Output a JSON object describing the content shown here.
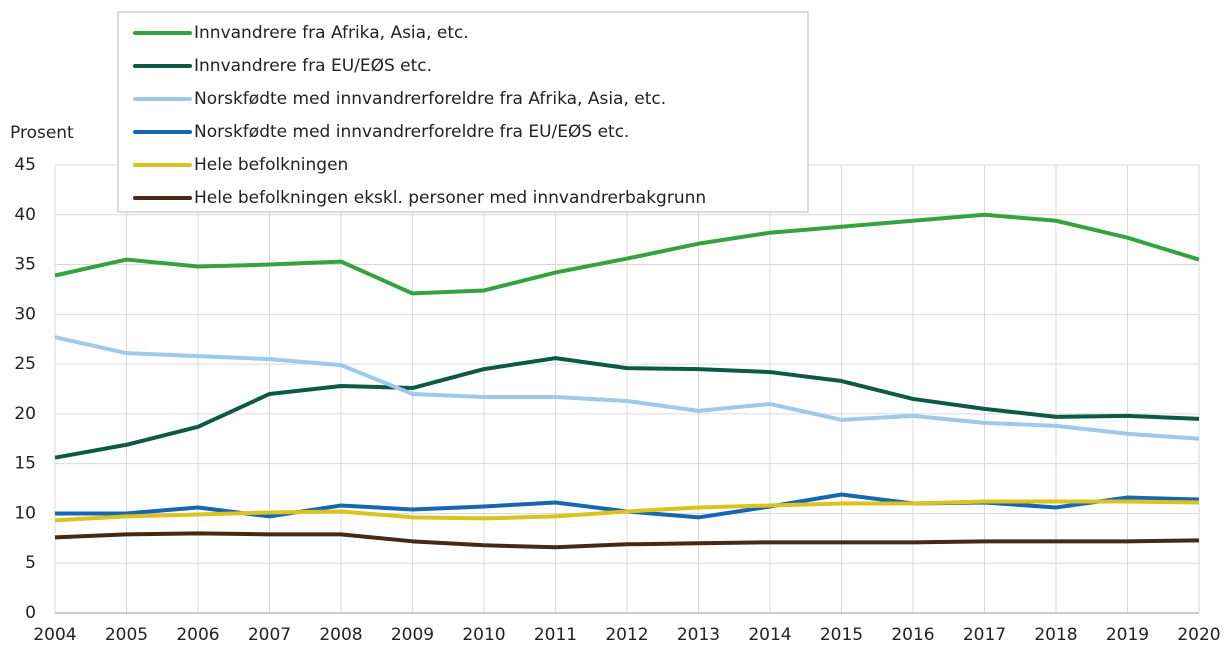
{
  "chart_data": {
    "type": "line",
    "y_label": "Prosent",
    "categories": [
      "2004",
      "2005",
      "2006",
      "2007",
      "2008",
      "2009",
      "2010",
      "2011",
      "2012",
      "2013",
      "2014",
      "2015",
      "2016",
      "2017",
      "2018",
      "2019",
      "2020"
    ],
    "ylim": [
      0,
      45
    ],
    "yticks": [
      0,
      5,
      10,
      15,
      20,
      25,
      30,
      35,
      40,
      45
    ],
    "grid": true,
    "legend": "top-left",
    "series": [
      {
        "name": "Innvandrere fra Afrika, Asia, etc.",
        "color": "#35a33d",
        "values": [
          33.9,
          35.5,
          34.8,
          35.0,
          35.3,
          32.1,
          32.4,
          34.2,
          35.6,
          37.1,
          38.2,
          38.8,
          39.4,
          40.0,
          39.4,
          37.7,
          35.5
        ]
      },
      {
        "name": "Innvandrere fra EU/EØS etc.",
        "color": "#0b5a45",
        "values": [
          15.6,
          16.9,
          18.7,
          22.0,
          22.8,
          22.6,
          24.5,
          25.6,
          24.6,
          24.5,
          24.2,
          23.3,
          21.5,
          20.5,
          19.7,
          19.8,
          19.5
        ]
      },
      {
        "name": "Norskfødte med innvandrerforeldre fra Afrika, Asia, etc.",
        "color": "#9dcaea",
        "values": [
          27.7,
          26.1,
          25.8,
          25.5,
          24.9,
          22.0,
          21.7,
          21.7,
          21.3,
          20.3,
          21.0,
          19.4,
          19.8,
          19.1,
          18.8,
          18.0,
          17.5
        ]
      },
      {
        "name": "Norskfødte med innvandrerforeldre fra EU/EØS etc.",
        "color": "#1467b0",
        "values": [
          10.0,
          10.0,
          10.6,
          9.7,
          10.8,
          10.4,
          10.7,
          11.1,
          10.2,
          9.6,
          10.7,
          11.9,
          11.0,
          11.1,
          10.6,
          11.6,
          11.4
        ]
      },
      {
        "name": "Hele befolkningen",
        "color": "#dcc21c",
        "values": [
          9.3,
          9.7,
          9.9,
          10.1,
          10.2,
          9.6,
          9.5,
          9.7,
          10.2,
          10.6,
          10.8,
          11.0,
          11.0,
          11.2,
          11.2,
          11.2,
          11.1
        ]
      },
      {
        "name": "Hele befolkningen ekskl. personer med innvandrerbakgrunn",
        "color": "#472817",
        "values": [
          7.6,
          7.9,
          8.0,
          7.9,
          7.9,
          7.2,
          6.8,
          6.6,
          6.9,
          7.0,
          7.1,
          7.1,
          7.1,
          7.2,
          7.2,
          7.2,
          7.3
        ]
      }
    ]
  }
}
